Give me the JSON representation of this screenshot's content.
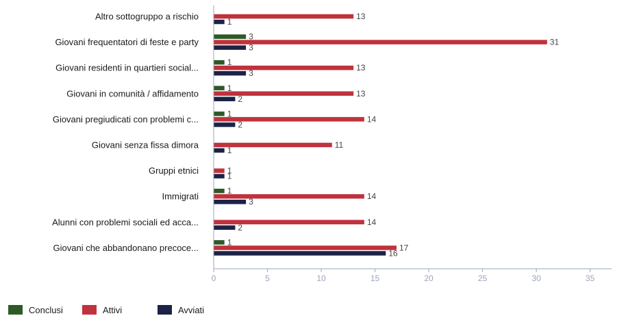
{
  "chart_data": {
    "type": "bar",
    "orientation": "horizontal",
    "title": "",
    "xlabel": "",
    "ylabel": "",
    "xlim": [
      0,
      37
    ],
    "x_ticks": [
      0,
      5,
      10,
      15,
      20,
      25,
      30,
      35
    ],
    "grid": false,
    "legend_position": "bottom-left",
    "categories": [
      "Altro sottogruppo a rischio",
      "Giovani frequentatori di feste e party",
      "Giovani residenti in quartieri social...",
      "Giovani in comunità / affidamento",
      "Giovani pregiudicati con problemi c...",
      "Giovani senza fissa dimora",
      "Gruppi etnici",
      "Immigrati",
      "Alunni con problemi sociali ed acca...",
      "Giovani che abbandonano precoce..."
    ],
    "series": [
      {
        "name": "Conclusi",
        "color": "#2d5a27",
        "values": [
          null,
          3,
          1,
          1,
          1,
          null,
          null,
          1,
          null,
          1
        ]
      },
      {
        "name": "Attivi",
        "color": "#c0323d",
        "values": [
          13,
          31,
          13,
          13,
          14,
          11,
          1,
          14,
          14,
          17
        ]
      },
      {
        "name": "Avviati",
        "color": "#1c2347",
        "values": [
          1,
          3,
          3,
          2,
          2,
          1,
          1,
          3,
          2,
          16
        ]
      }
    ]
  },
  "colors": {
    "axis": "#9aa4ba",
    "label_text": "#1a1a1a",
    "value_text": "#444444"
  }
}
